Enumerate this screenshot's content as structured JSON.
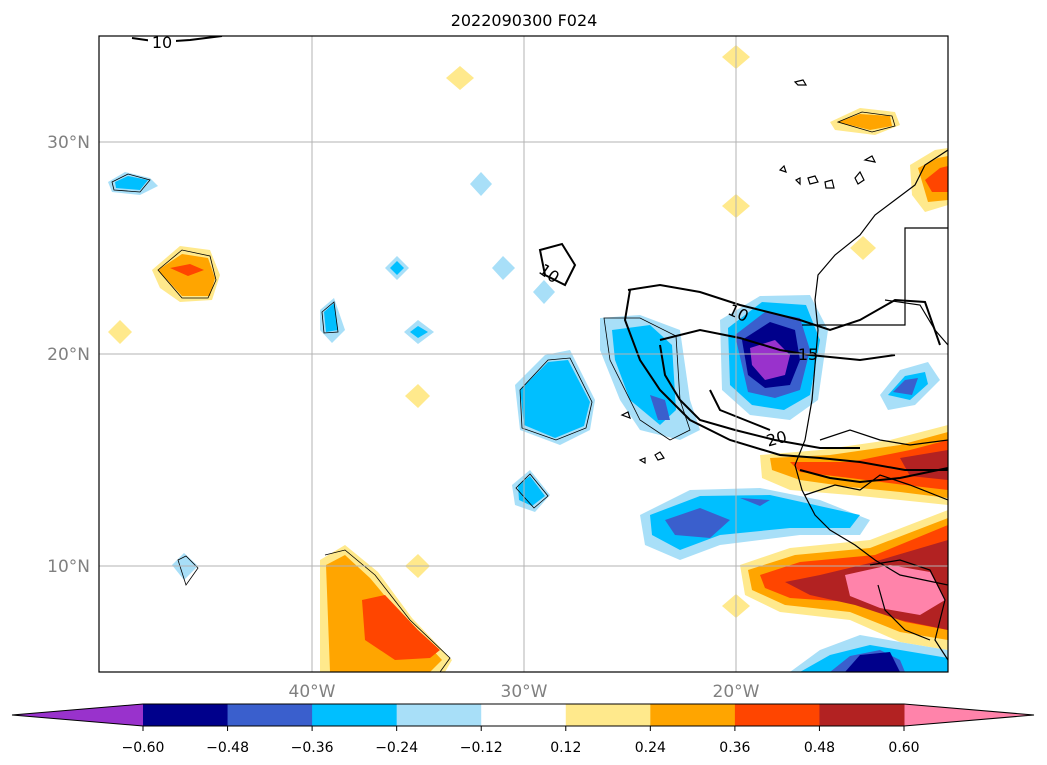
{
  "title": "2022090300 F024",
  "map": {
    "lat_ticks": [
      {
        "value": 30,
        "label": "30°N"
      },
      {
        "value": 20,
        "label": "20°N"
      },
      {
        "value": 10,
        "label": "10°N"
      }
    ],
    "lon_ticks": [
      {
        "value": -40,
        "label": "40°W"
      },
      {
        "value": -30,
        "label": "30°W"
      },
      {
        "value": -20,
        "label": "20°W"
      }
    ],
    "contour_labels": [
      "10",
      "10",
      "10",
      "15",
      "20"
    ],
    "grid": true
  },
  "colorbar": {
    "ticks": [
      "−0.60",
      "−0.48",
      "−0.36",
      "−0.24",
      "−0.12",
      "0.12",
      "0.24",
      "0.36",
      "0.48",
      "0.60"
    ],
    "extend": "both",
    "colors": {
      "under": "#9932cc",
      "c1": "#00008b",
      "c2": "#3a5fcd",
      "c3": "#00bfff",
      "c4": "#a8dff8",
      "c5": "#ffffff",
      "c6": "#ffe98c",
      "c7": "#ffa500",
      "c8": "#ff4500",
      "c9": "#b22222",
      "over": "#ff83aa"
    }
  }
}
